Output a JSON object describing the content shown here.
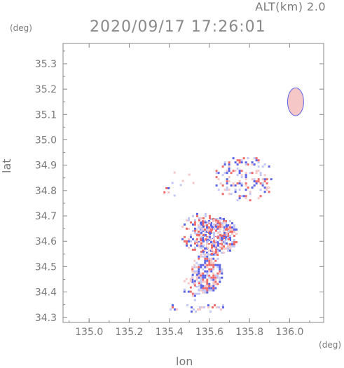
{
  "header": {
    "alt_label": "ALT(km) 2.0",
    "timestamp": "2020/09/17 17:26:01"
  },
  "chart_data": {
    "type": "heatmap",
    "title": "2020/09/17 17:26:01",
    "xlabel": "lon",
    "ylabel": "lat",
    "x_unit": "(deg)",
    "y_unit": "(deg)",
    "xlim": [
      134.87,
      136.17
    ],
    "ylim": [
      34.28,
      35.38
    ],
    "xticks": [
      "135.0",
      "135.2",
      "135.4",
      "135.6",
      "135.8",
      "136.0"
    ],
    "yticks": [
      "34.3",
      "34.4",
      "34.5",
      "34.6",
      "34.7",
      "34.8",
      "34.9",
      "35.0",
      "35.1",
      "35.2",
      "35.3"
    ],
    "colors": {
      "positive": "#f06a6a",
      "positive_light": "#f6c7c7",
      "negative": "#5a63e8",
      "negative_light": "#c3c6f4",
      "axis": "#888888"
    },
    "echo_regions": [
      {
        "lon": [
          135.52,
          135.74
        ],
        "lat": [
          34.55,
          34.7
        ],
        "density": 0.85
      },
      {
        "lon": [
          135.5,
          135.66
        ],
        "lat": [
          34.4,
          34.56
        ],
        "density": 0.8
      },
      {
        "lon": [
          135.46,
          135.56
        ],
        "lat": [
          34.36,
          34.48
        ],
        "density": 0.35
      },
      {
        "lon": [
          135.45,
          135.7
        ],
        "lat": [
          34.55,
          34.72
        ],
        "density": 0.4
      },
      {
        "lon": [
          135.62,
          135.92
        ],
        "lat": [
          34.76,
          34.94
        ],
        "density": 0.35
      },
      {
        "lon": [
          135.4,
          135.55
        ],
        "lat": [
          34.75,
          34.95
        ],
        "density": 0.08
      },
      {
        "lon": [
          135.38,
          135.7
        ],
        "lat": [
          34.32,
          34.36
        ],
        "density": 0.3
      },
      {
        "lon": [
          135.36,
          135.4
        ],
        "lat": [
          34.78,
          34.83
        ],
        "density": 0.4
      }
    ],
    "blobs": [
      {
        "lon": 136.03,
        "lat": 35.15,
        "rlon": 0.04,
        "rlat": 0.055,
        "sign": "positive"
      }
    ]
  }
}
